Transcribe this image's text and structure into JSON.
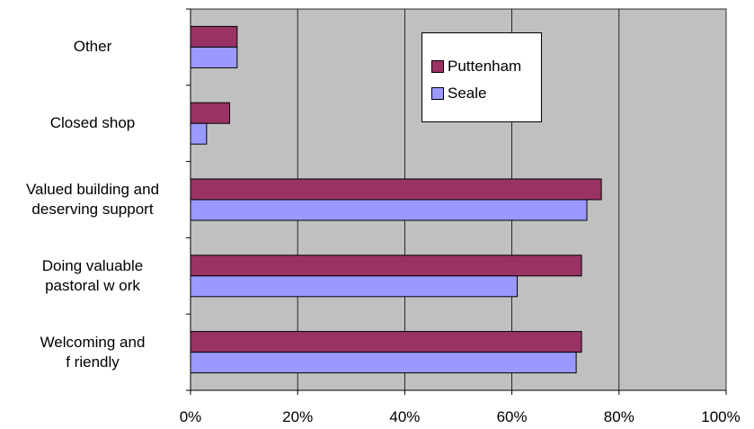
{
  "chart_data": {
    "type": "bar",
    "orientation": "horizontal",
    "categories": [
      "Other",
      "Closed shop",
      "Valued building and deserving support",
      "Doing valuable pastoral w ork",
      "Welcoming and friendly"
    ],
    "category_lines": [
      [
        "Other"
      ],
      [
        "Closed shop"
      ],
      [
        "Valued building and",
        "deserving support"
      ],
      [
        "Doing valuable",
        "pastoral w ork"
      ],
      [
        "Welcoming and",
        "f riendly"
      ]
    ],
    "series": [
      {
        "name": "Puttenham",
        "color": "#993366",
        "values": [
          0.087,
          0.073,
          0.767,
          0.73,
          0.73
        ]
      },
      {
        "name": "Seale",
        "color": "#9999FF",
        "values": [
          0.087,
          0.03,
          0.74,
          0.61,
          0.72
        ]
      }
    ],
    "xlim": [
      0,
      1
    ],
    "ticks": [
      "0%",
      "20%",
      "40%",
      "60%",
      "80%",
      "100%"
    ],
    "plot_background": "#C0C0C0",
    "grid": true,
    "legend_position": "top-right"
  }
}
